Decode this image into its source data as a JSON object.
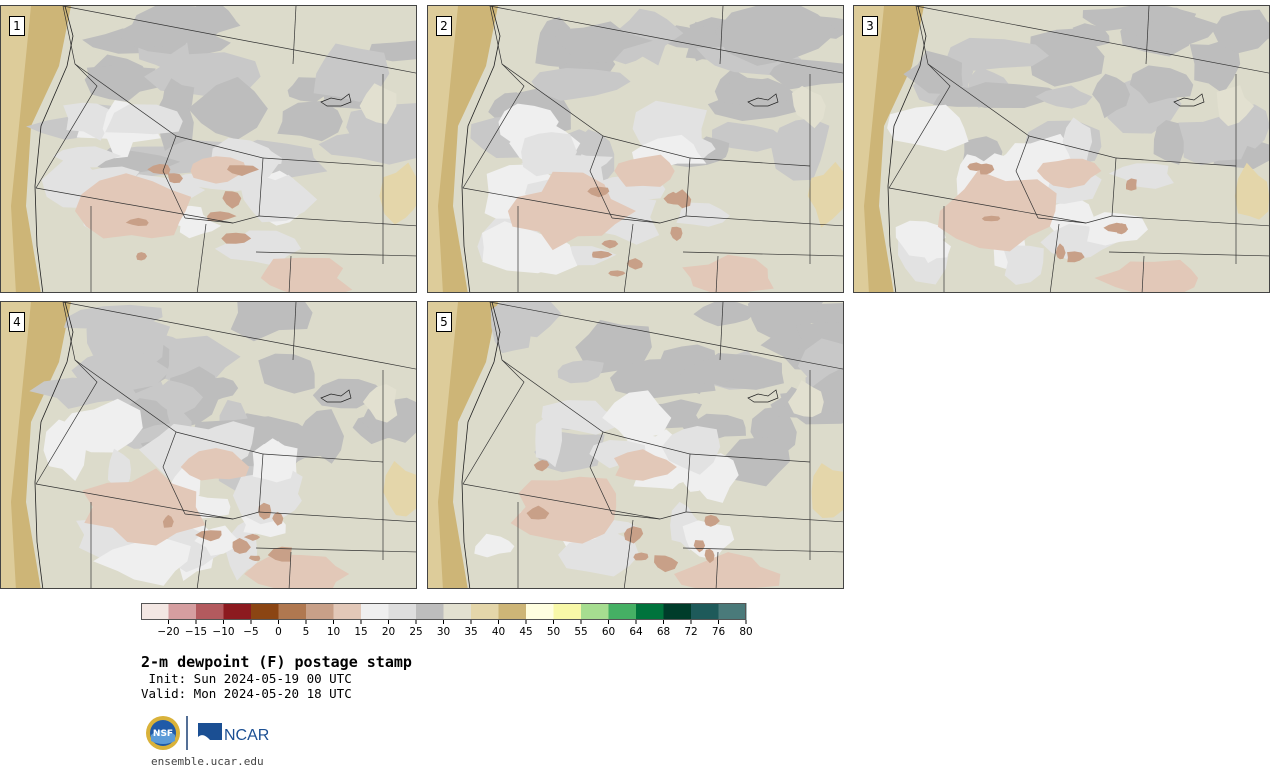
{
  "panels": [
    {
      "label": "1"
    },
    {
      "label": "2"
    },
    {
      "label": "3"
    },
    {
      "label": "4"
    },
    {
      "label": "5"
    }
  ],
  "colorbar": {
    "colors": [
      "#f3e7e3",
      "#d59ea0",
      "#b35a5e",
      "#8c1a1f",
      "#8b4513",
      "#b07850",
      "#c8a088",
      "#e2c8b8",
      "#efefef",
      "#dedede",
      "#bdbdbd",
      "#e2e0d0",
      "#e4d6aa",
      "#cdb577",
      "#fffee0",
      "#f8f8a8",
      "#a6dd90",
      "#45b064",
      "#00733c",
      "#003c2a",
      "#1e5a5a",
      "#4a7a7a"
    ],
    "ticks": [
      "−20",
      "−15",
      "−10",
      "−5",
      "0",
      "5",
      "10",
      "15",
      "20",
      "25",
      "30",
      "35",
      "40",
      "45",
      "50",
      "55",
      "60",
      "64",
      "68",
      "72",
      "76",
      "80"
    ]
  },
  "title": "2-m dewpoint (F) postage stamp",
  "init": " Init: Sun 2024-05-19 00 UTC",
  "valid": "Valid: Mon 2024-05-20 18 UTC",
  "logos": {
    "nsf": "NSF",
    "ncar": "NCAR"
  },
  "site": "ensemble.ucar.edu"
}
